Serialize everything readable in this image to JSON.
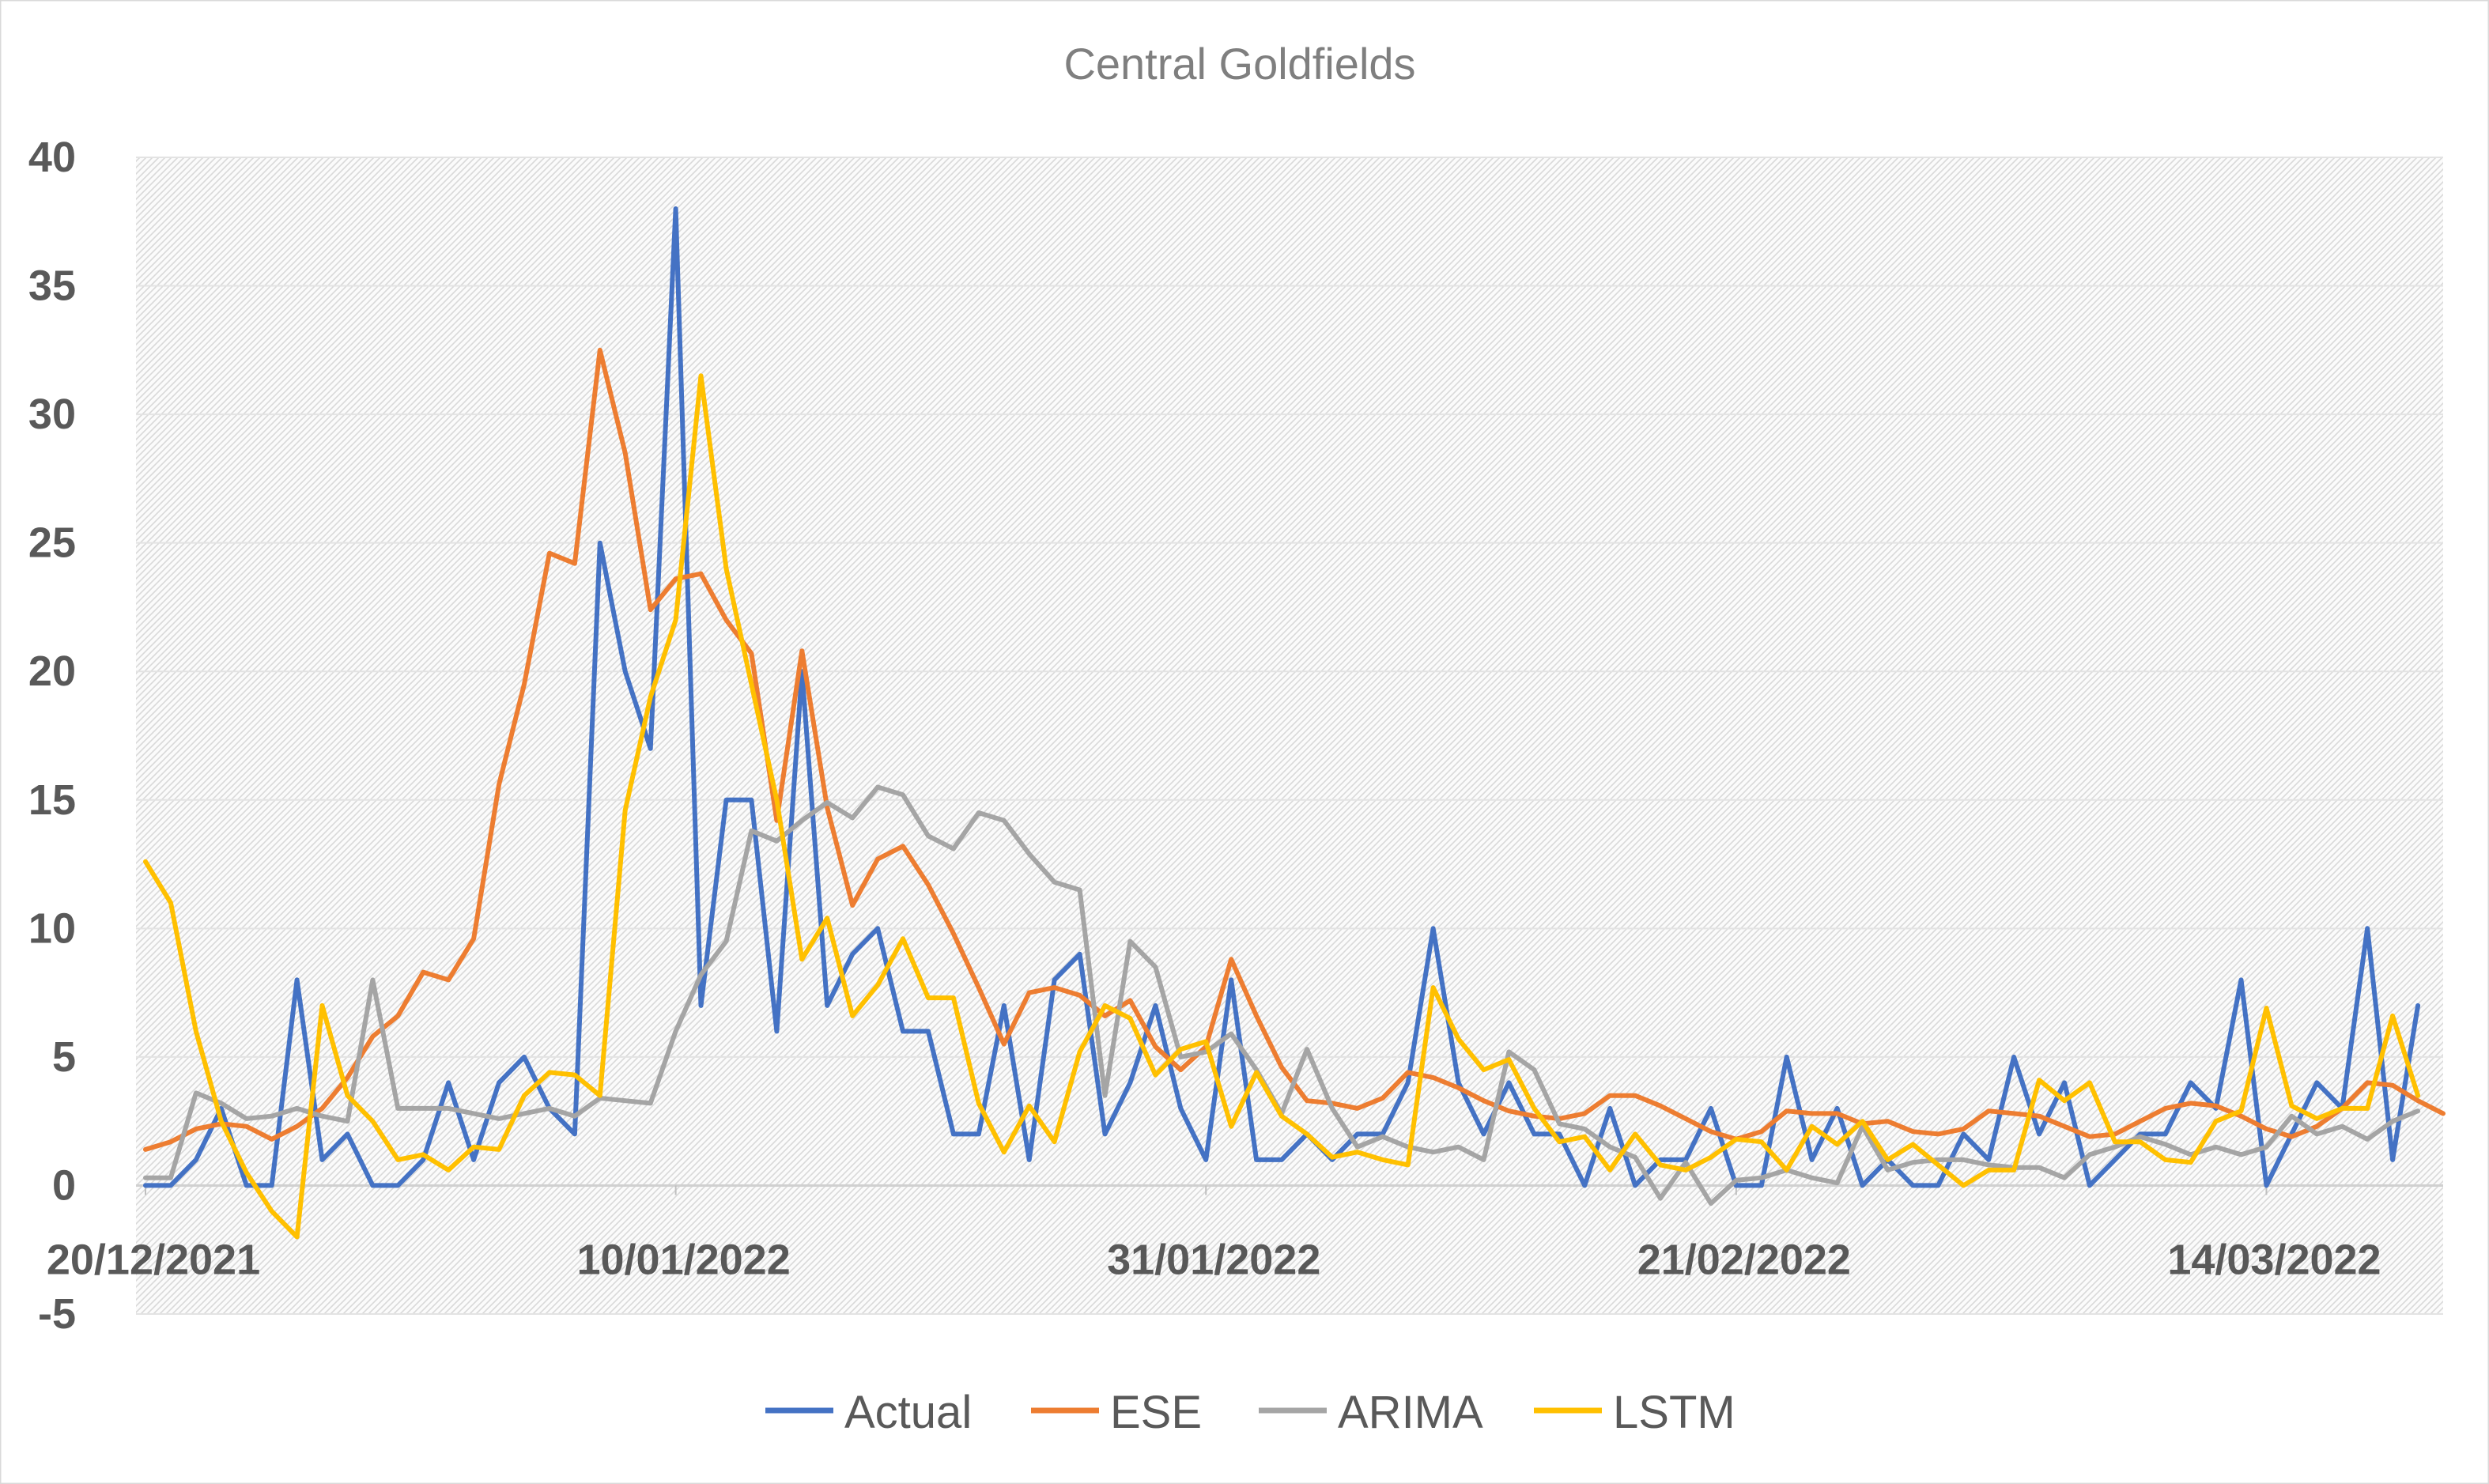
{
  "chart_data": {
    "type": "line",
    "title": "Central Goldfields",
    "xlabel": "",
    "ylabel": "",
    "ylim": [
      -5,
      40
    ],
    "yticks": [
      40,
      35,
      30,
      25,
      20,
      15,
      10,
      5,
      0,
      -5
    ],
    "x_start": "20/12/2021",
    "x_tick_labels": [
      "20/12/2021",
      "10/01/2022",
      "31/01/2022",
      "21/02/2022",
      "14/03/2022"
    ],
    "x_tick_days": [
      0,
      21,
      42,
      63,
      84
    ],
    "grid": true,
    "legend_position": "bottom",
    "series": [
      {
        "name": "Actual",
        "color": "#4472c4",
        "values": [
          0,
          0,
          1,
          3,
          0,
          0,
          8,
          1,
          2,
          0,
          0,
          1,
          4,
          1,
          4,
          5,
          3,
          2,
          25,
          20,
          17,
          38,
          7,
          15,
          15,
          6,
          20,
          7,
          9,
          10,
          6,
          6,
          2,
          2,
          7,
          1,
          8,
          9,
          2,
          4,
          7,
          3,
          1,
          8,
          1,
          1,
          2,
          1,
          2,
          2,
          4,
          10,
          4,
          2,
          4,
          2,
          2,
          0,
          3,
          0,
          1,
          1,
          3,
          0,
          0,
          5,
          1,
          3,
          0,
          1,
          0,
          0,
          2,
          1,
          5,
          2,
          4,
          0,
          1,
          2,
          2,
          4,
          3,
          8,
          0,
          2,
          4,
          3,
          10,
          1,
          7
        ]
      },
      {
        "name": "ESE",
        "color": "#ed7d31",
        "values": [
          1.4,
          1.7,
          2.2,
          2.4,
          2.3,
          1.8,
          2.3,
          3.0,
          4.2,
          5.8,
          6.6,
          8.3,
          8.0,
          9.6,
          15.6,
          19.5,
          24.6,
          24.2,
          32.5,
          28.5,
          22.4,
          23.6,
          23.8,
          22.0,
          20.7,
          14.2,
          20.8,
          14.7,
          10.9,
          12.7,
          13.2,
          11.7,
          9.8,
          7.7,
          5.5,
          7.5,
          7.7,
          7.4,
          6.6,
          7.2,
          5.4,
          4.5,
          5.4,
          8.8,
          6.6,
          4.6,
          3.3,
          3.2,
          3.0,
          3.4,
          4.4,
          4.2,
          3.8,
          3.3,
          2.9,
          2.7,
          2.6,
          2.8,
          3.5,
          3.5,
          3.1,
          2.6,
          2.1,
          1.8,
          2.1,
          2.9,
          2.8,
          2.8,
          2.4,
          2.5,
          2.1,
          2.0,
          2.2,
          2.9,
          2.8,
          2.7,
          2.3,
          1.9,
          2.0,
          2.5,
          3.0,
          3.2,
          3.1,
          2.7,
          2.2,
          1.9,
          2.3,
          3.0,
          4.0,
          3.9,
          3.3,
          2.8
        ]
      },
      {
        "name": "ARIMA",
        "color": "#a5a5a5",
        "values": [
          0.3,
          0.3,
          3.6,
          3.2,
          2.6,
          2.7,
          3.0,
          2.7,
          2.5,
          8.0,
          3.0,
          3.0,
          3.0,
          2.8,
          2.6,
          2.8,
          3.0,
          2.7,
          3.4,
          3.3,
          3.2,
          6.0,
          8.2,
          9.5,
          13.8,
          13.4,
          14.2,
          14.9,
          14.3,
          15.5,
          15.2,
          13.6,
          13.1,
          14.5,
          14.2,
          12.9,
          11.8,
          11.5,
          3.5,
          9.5,
          8.5,
          5.0,
          5.2,
          5.9,
          4.5,
          2.8,
          5.3,
          3.0,
          1.5,
          1.9,
          1.5,
          1.3,
          1.5,
          1.0,
          5.2,
          4.5,
          2.4,
          2.2,
          1.5,
          1.1,
          -0.5,
          0.9,
          -0.7,
          0.2,
          0.3,
          0.6,
          0.3,
          0.1,
          2.3,
          0.6,
          0.9,
          1.0,
          1.0,
          0.8,
          0.7,
          0.7,
          0.3,
          1.2,
          1.5,
          1.9,
          1.6,
          1.2,
          1.5,
          1.2,
          1.5,
          2.7,
          2.0,
          2.3,
          1.8,
          2.5,
          2.9
        ]
      },
      {
        "name": "LSTM",
        "color": "#ffc000",
        "values": [
          12.6,
          11.0,
          6.0,
          2.5,
          0.5,
          -1.0,
          -2.0,
          7.0,
          3.5,
          2.5,
          1.0,
          1.2,
          0.6,
          1.5,
          1.4,
          3.5,
          4.4,
          4.3,
          3.5,
          14.6,
          19.0,
          22.0,
          31.5,
          24.0,
          19.5,
          15.0,
          8.8,
          10.4,
          6.6,
          7.8,
          9.6,
          7.3,
          7.3,
          3.2,
          1.3,
          3.1,
          1.7,
          5.2,
          7.0,
          6.5,
          4.3,
          5.3,
          5.6,
          2.3,
          4.4,
          2.7,
          2.0,
          1.1,
          1.3,
          1.0,
          0.8,
          7.7,
          5.7,
          4.5,
          4.9,
          3.0,
          1.7,
          1.9,
          0.6,
          2.0,
          0.8,
          0.6,
          1.1,
          1.8,
          1.7,
          0.6,
          2.3,
          1.6,
          2.5,
          1.0,
          1.6,
          0.8,
          0.0,
          0.6,
          0.6,
          4.1,
          3.3,
          4.0,
          1.7,
          1.7,
          1.0,
          0.9,
          2.5,
          2.9,
          6.9,
          3.1,
          2.6,
          3.0,
          3.0,
          6.6,
          3.5
        ]
      }
    ]
  }
}
